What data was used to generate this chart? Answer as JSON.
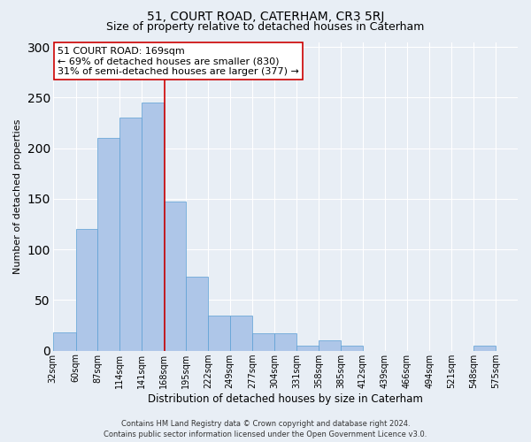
{
  "title": "51, COURT ROAD, CATERHAM, CR3 5RJ",
  "subtitle": "Size of property relative to detached houses in Caterham",
  "xlabel": "Distribution of detached houses by size in Caterham",
  "ylabel": "Number of detached properties",
  "footer_line1": "Contains HM Land Registry data © Crown copyright and database right 2024.",
  "footer_line2": "Contains public sector information licensed under the Open Government Licence v3.0.",
  "annotation_line1": "51 COURT ROAD: 169sqm",
  "annotation_line2": "← 69% of detached houses are smaller (830)",
  "annotation_line3": "31% of semi-detached houses are larger (377) →",
  "property_size": 169,
  "bin_labels": [
    "32sqm",
    "60sqm",
    "87sqm",
    "114sqm",
    "141sqm",
    "168sqm",
    "195sqm",
    "222sqm",
    "249sqm",
    "277sqm",
    "304sqm",
    "331sqm",
    "358sqm",
    "385sqm",
    "412sqm",
    "439sqm",
    "466sqm",
    "494sqm",
    "521sqm",
    "548sqm",
    "575sqm"
  ],
  "bin_edges": [
    32,
    60,
    87,
    114,
    141,
    168,
    195,
    222,
    249,
    277,
    304,
    331,
    358,
    385,
    412,
    439,
    466,
    494,
    521,
    548,
    575
  ],
  "bar_heights": [
    18,
    120,
    210,
    230,
    245,
    147,
    73,
    35,
    35,
    17,
    17,
    5,
    10,
    5,
    0,
    0,
    0,
    0,
    0,
    5,
    0
  ],
  "bar_color": "#aec6e8",
  "bar_edge_color": "#5a9fd4",
  "vline_x": 169,
  "vline_color": "#cc0000",
  "bg_color": "#e8eef5",
  "plot_bg_color": "#e8eef5",
  "ylim": [
    0,
    305
  ],
  "yticks": [
    0,
    50,
    100,
    150,
    200,
    250,
    300
  ],
  "grid_color": "#ffffff",
  "annotation_box_edge_color": "#cc0000",
  "annotation_box_face_color": "#ffffff",
  "title_fontsize": 10,
  "subtitle_fontsize": 9,
  "ylabel_fontsize": 8,
  "xlabel_fontsize": 8.5,
  "tick_fontsize": 7,
  "footer_fontsize": 6,
  "annot_fontsize": 8
}
